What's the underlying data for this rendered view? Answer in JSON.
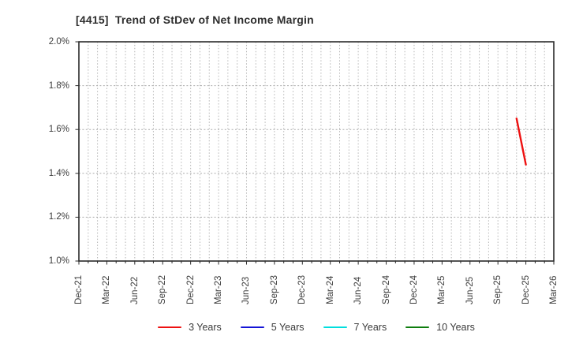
{
  "chart_data": {
    "type": "line",
    "title": "[4415]  Trend of StDev of Net Income Margin",
    "xlabel": "",
    "ylabel": "",
    "ylim": [
      1.0,
      2.0
    ],
    "y_ticks": [
      {
        "value": 1.0,
        "label": "1.0%"
      },
      {
        "value": 1.2,
        "label": "1.2%"
      },
      {
        "value": 1.4,
        "label": "1.4%"
      },
      {
        "value": 1.6,
        "label": "1.6%"
      },
      {
        "value": 1.8,
        "label": "1.8%"
      },
      {
        "value": 2.0,
        "label": "2.0%"
      }
    ],
    "x_ticks": [
      "Dec-21",
      "Mar-22",
      "Jun-22",
      "Sep-22",
      "Dec-22",
      "Mar-23",
      "Jun-23",
      "Sep-23",
      "Dec-23",
      "Mar-24",
      "Jun-24",
      "Sep-24",
      "Dec-24",
      "Mar-25",
      "Jun-25",
      "Sep-25",
      "Dec-25",
      "Mar-26"
    ],
    "months_between_ticks": 3,
    "total_month_span": 51,
    "grid": "monthly dotted vertical lines, dashed horizontal lines at each y tick",
    "legend_position": "bottom-center",
    "series": [
      {
        "name": "3 Years",
        "color": "#ee1111",
        "points": [
          {
            "month": 47,
            "x_label": "Nov-25",
            "value": 1.65
          },
          {
            "month": 48,
            "x_label": "Dec-25",
            "value": 1.44
          }
        ]
      },
      {
        "name": "5 Years",
        "color": "#1414d6",
        "points": []
      },
      {
        "name": "7 Years",
        "color": "#00dede",
        "points": []
      },
      {
        "name": "10 Years",
        "color": "#0e7d0e",
        "points": []
      }
    ]
  }
}
